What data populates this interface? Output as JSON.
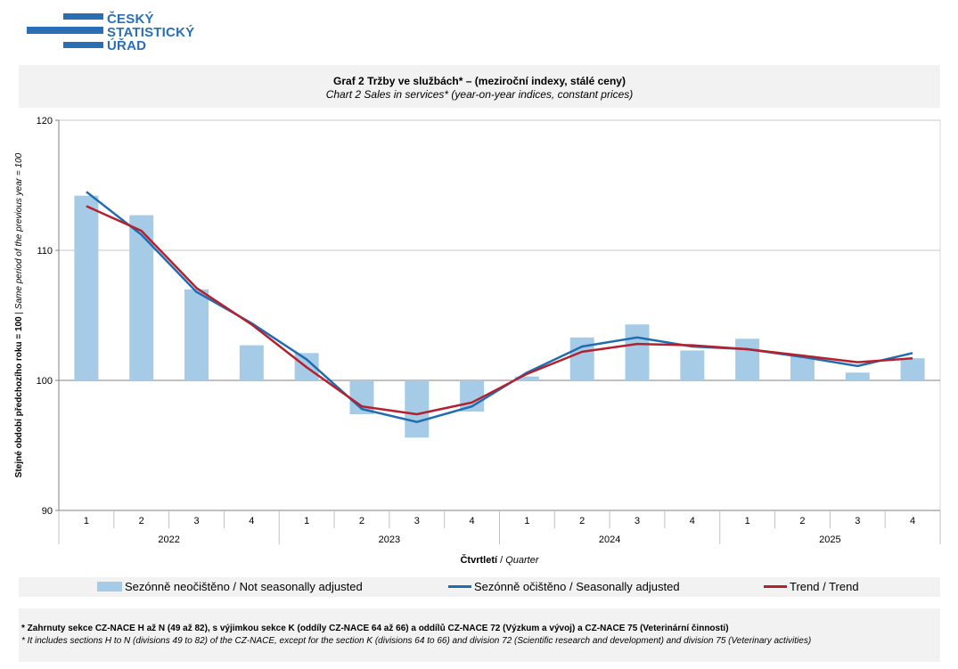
{
  "logo": {
    "line1": "ČESKÝ",
    "line2": "STATISTICKÝ",
    "line3": "ÚŘAD",
    "color": "#2a6fb5"
  },
  "title": {
    "main": "Graf 2  Tržby ve službách* – (meziroční indexy, stálé ceny)",
    "sub": "Chart 2  Sales in services* (year-on-year  indices, constant prices)"
  },
  "footnotes": {
    "cz": "* Zahrnuty sekce CZ-NACE H až N  (49 až 82), s výjimkou sekce  K (oddíly CZ-NACE 64 až 66) a oddílů CZ-NACE 72 (Výzkum a vývoj) a CZ-NACE 75 (Veterinární činnosti)",
    "en": "* It includes sections H to N (divisions 49 to 82) of the CZ-NACE, except for the section K (divisions 64 to 66) and division 72 (Scientific research and development) and division 75 (Veterinary activities)"
  },
  "chart_data": {
    "type": "bar",
    "title": "Graf 2  Tržby ve službách* – (meziroční indexy, stálé ceny)",
    "ylabel_cz": "Stejné období předchozího roku = 100",
    "ylabel_sep": " | ",
    "ylabel_en": "Same period of the previous year = 100",
    "xlabel_cz": "Čtvrtletí",
    "xlabel_sep": " / ",
    "xlabel_en": "Quarter",
    "ylim": [
      90,
      120
    ],
    "baseline": 100,
    "yticks": [
      "90",
      "100",
      "110",
      "120"
    ],
    "categories": [
      "1",
      "2",
      "3",
      "4",
      "1",
      "2",
      "3",
      "4",
      "1",
      "2",
      "3",
      "4",
      "1",
      "2",
      "3",
      "4"
    ],
    "years": [
      "2022",
      "2023",
      "2024",
      "2025"
    ],
    "series": [
      {
        "name": "Sezónně neočištěno / Not seasonally adjusted",
        "kind": "bar",
        "color": "#a6cbe6",
        "values": [
          114.2,
          112.7,
          107.0,
          102.7,
          102.1,
          97.4,
          95.6,
          97.6,
          100.3,
          103.3,
          104.3,
          102.3,
          103.2,
          101.9,
          100.6,
          101.7
        ]
      },
      {
        "name": "Sezónně očištěno / Seasonally adjusted",
        "kind": "line",
        "color": "#1f6db0",
        "values": [
          114.5,
          111.2,
          106.8,
          104.4,
          101.6,
          97.8,
          96.8,
          98.0,
          100.6,
          102.6,
          103.3,
          102.6,
          102.4,
          101.8,
          101.1,
          102.1
        ]
      },
      {
        "name": "Trend / Trend",
        "kind": "line",
        "color": "#b5202e",
        "values": [
          113.4,
          111.5,
          107.1,
          104.3,
          101.0,
          98.0,
          97.4,
          98.3,
          100.5,
          102.2,
          102.8,
          102.7,
          102.4,
          101.9,
          101.4,
          101.7
        ]
      }
    ]
  }
}
